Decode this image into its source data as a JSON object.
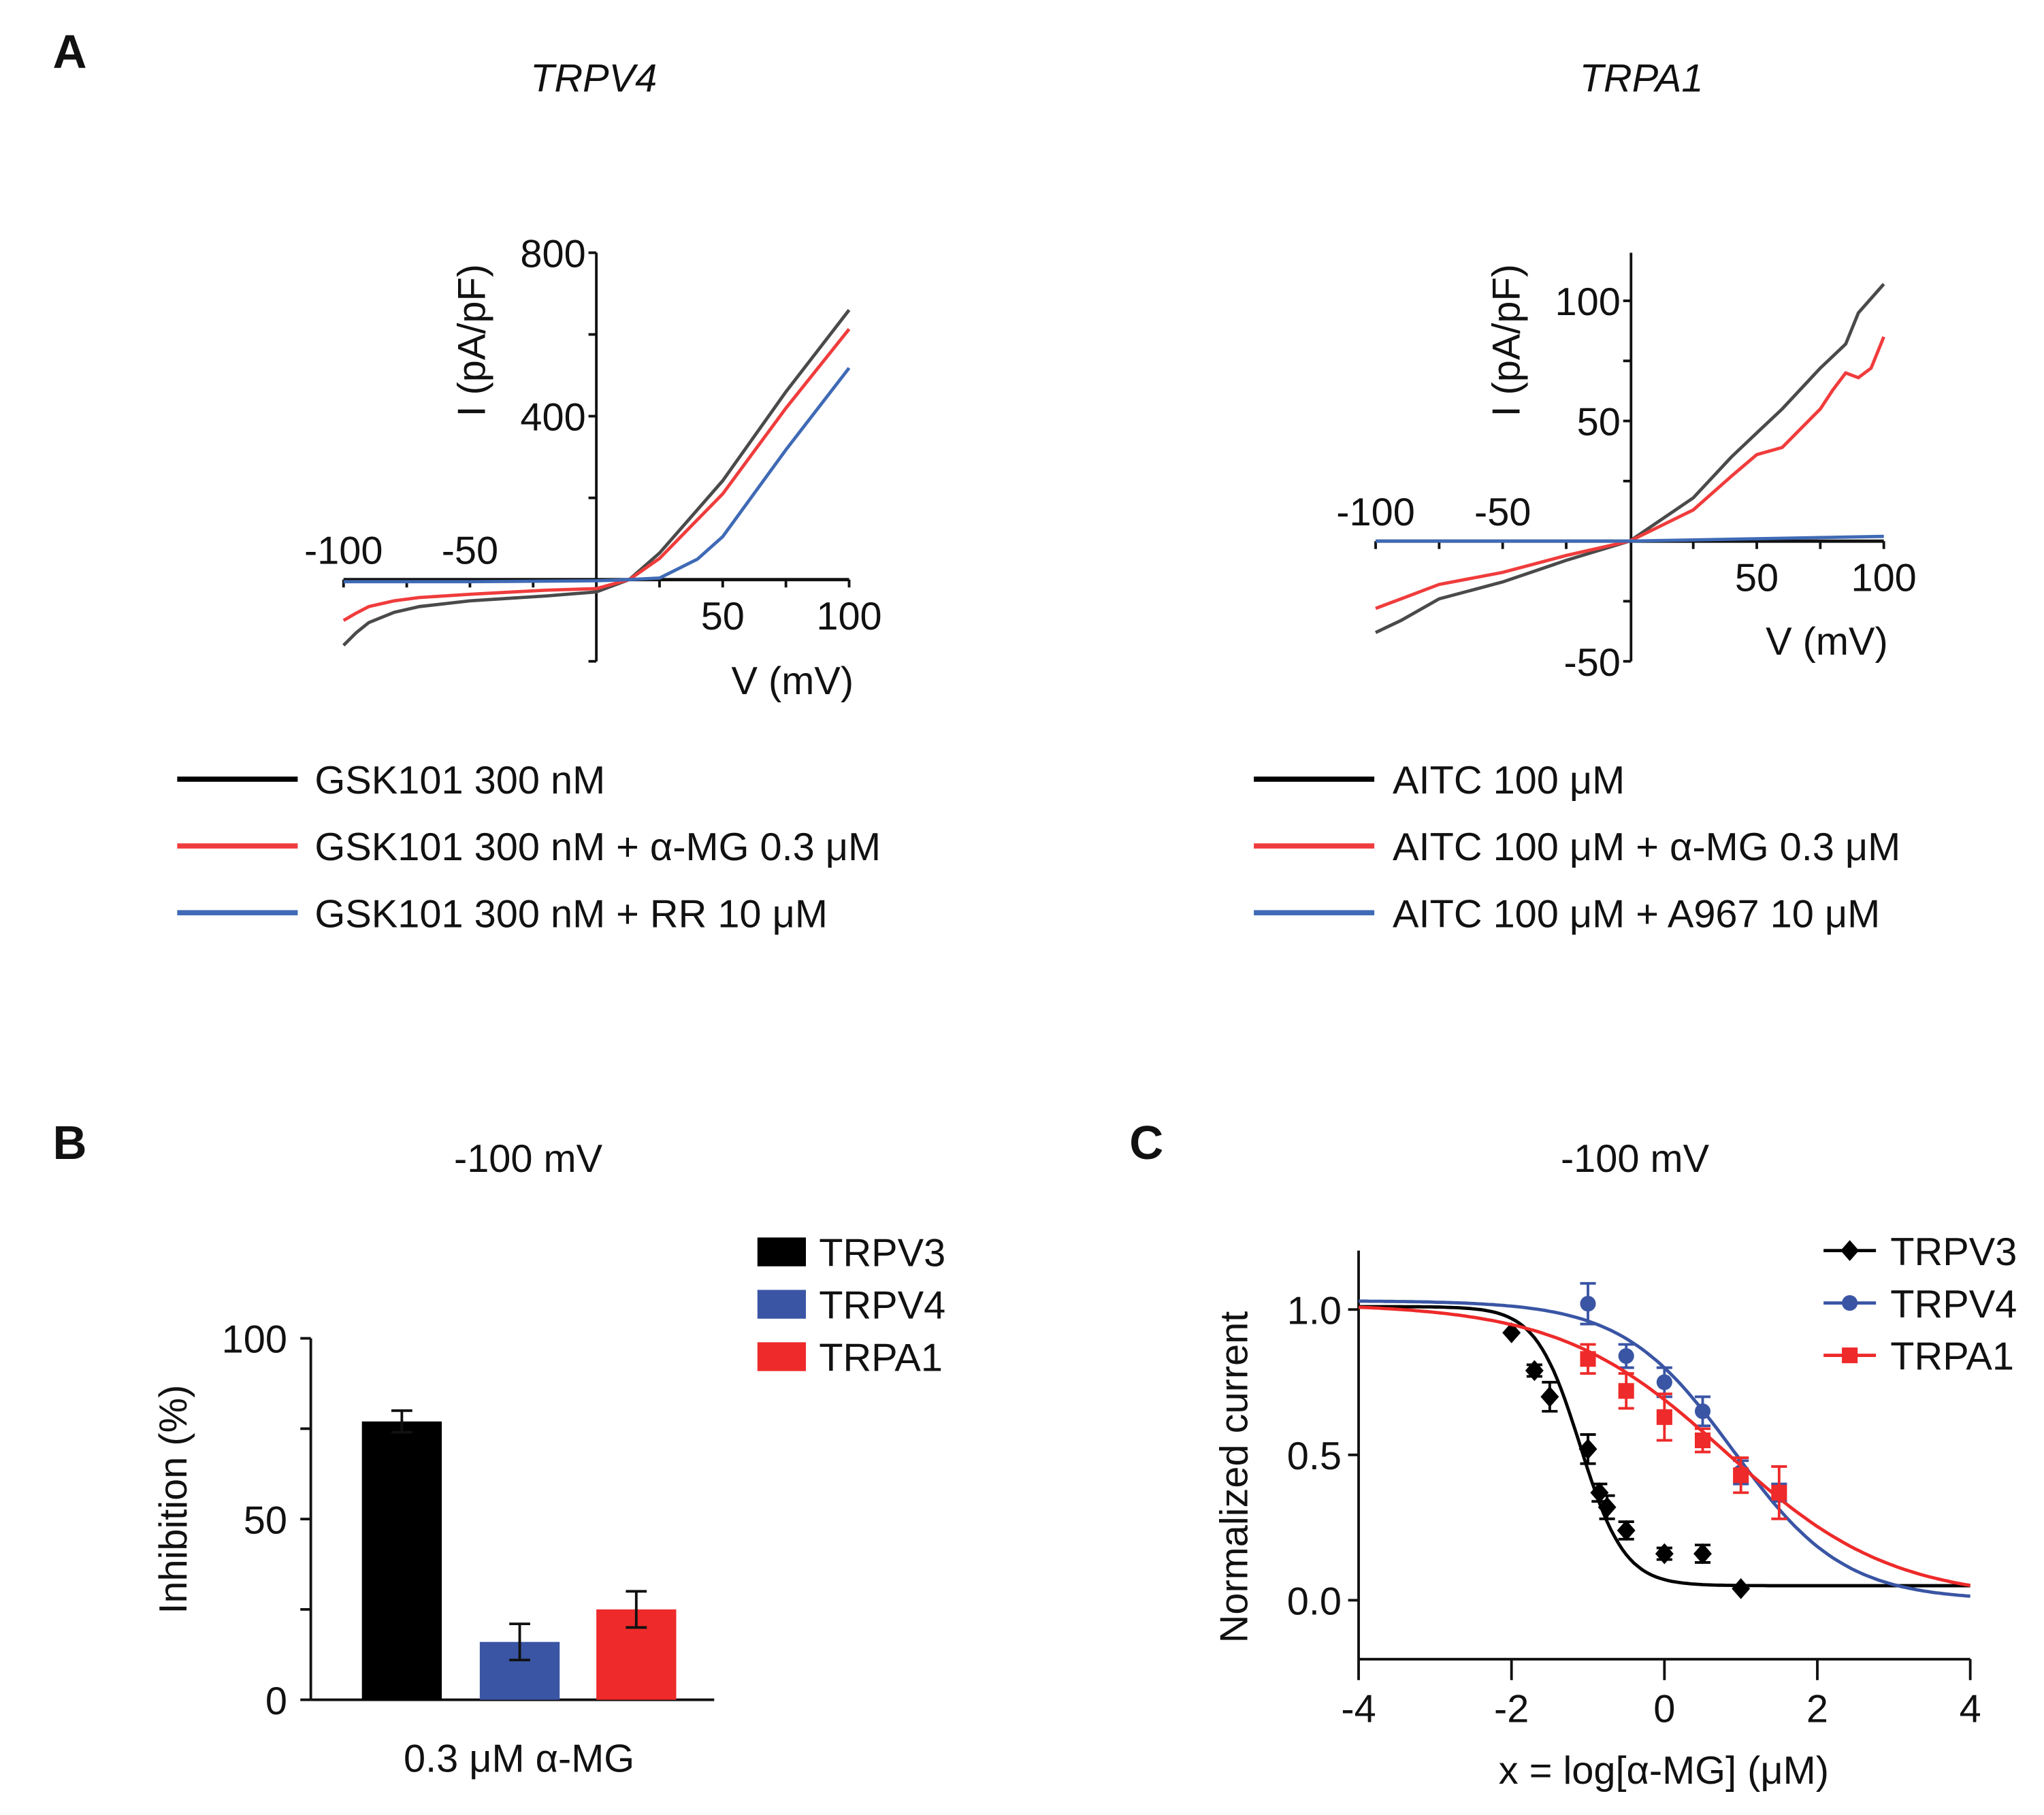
{
  "panels": {
    "a": "A",
    "b": "B",
    "c": "C"
  },
  "chart_data": [
    {
      "type": "line",
      "title": "TRPV4",
      "xlabel": "V (mV)",
      "ylabel": "I (pA/pF)",
      "xlim": [
        -100,
        100
      ],
      "ylim": [
        -200,
        800
      ],
      "xticks": [
        -100,
        -50,
        50,
        100
      ],
      "yticks": [
        800,
        400
      ],
      "series": [
        {
          "name": "GSK101 300 nM",
          "color": "#4a4a4a",
          "x": [
            -100,
            -95,
            -90,
            -80,
            -70,
            -50,
            -20,
            0,
            13,
            25,
            50,
            75,
            100
          ],
          "y": [
            -161,
            -130,
            -105,
            -80,
            -66,
            -52,
            -40,
            -30,
            0,
            65,
            242,
            460,
            660
          ]
        },
        {
          "name": "GSK101 300 nM + α-MG 0.3 μM",
          "color": "#f03c3c",
          "x": [
            -100,
            -95,
            -90,
            -80,
            -70,
            -50,
            -20,
            0,
            13,
            25,
            50,
            75,
            100
          ],
          "y": [
            -100,
            -82,
            -66,
            -52,
            -44,
            -36,
            -26,
            -22,
            0,
            52,
            210,
            420,
            613
          ]
        },
        {
          "name": "GSK101 300 nM + RR 10 μM",
          "color": "#3f6ab5",
          "x": [
            -100,
            -50,
            0,
            13,
            25,
            40,
            50,
            75,
            100
          ],
          "y": [
            -5,
            -5,
            -3,
            0,
            4,
            50,
            105,
            318,
            518
          ]
        }
      ]
    },
    {
      "type": "line",
      "title": "TRPA1",
      "xlabel": "V (mV)",
      "ylabel": "I (pA/pF)",
      "xlim": [
        -100,
        100
      ],
      "ylim": [
        -50,
        120
      ],
      "xticks": [
        -100,
        -50,
        50,
        100
      ],
      "yticks": [
        100,
        50,
        -50
      ],
      "series": [
        {
          "name": "AITC 100 μM",
          "color": "#4a4a4a",
          "x": [
            -100,
            -90,
            -75,
            -50,
            -25,
            0,
            25,
            40,
            50,
            60,
            75,
            80,
            85,
            90,
            100
          ],
          "y": [
            -38,
            -33,
            -24,
            -17,
            -8,
            0,
            18,
            35,
            45,
            55,
            72,
            77,
            82,
            95,
            107
          ]
        },
        {
          "name": "AITC 100 μM + α-MG 0.3 μM",
          "color": "#f03c3c",
          "x": [
            -100,
            -90,
            -75,
            -50,
            -25,
            0,
            25,
            40,
            50,
            60,
            75,
            80,
            85,
            90,
            95,
            100
          ],
          "y": [
            -28,
            -24,
            -18,
            -13,
            -6,
            0,
            13,
            27,
            36,
            39,
            55,
            63,
            70,
            68,
            72,
            85
          ]
        },
        {
          "name": "AITC 100 μM + A967 10 μM",
          "color": "#3f6ab5",
          "x": [
            -100,
            0,
            25,
            50,
            75,
            100
          ],
          "y": [
            0,
            0,
            0.5,
            1,
            1.5,
            2
          ]
        }
      ]
    },
    {
      "type": "bar",
      "title": "-100 mV",
      "xlabel": "0.3 μM α-MG",
      "ylabel": "Inhibition (%)",
      "ylim": [
        0,
        100
      ],
      "yticks": [
        0,
        50,
        100
      ],
      "legend": "top-right",
      "categories": [
        "TRPV3",
        "TRPV4",
        "TRPA1"
      ],
      "values": [
        77,
        16,
        25
      ],
      "errors": [
        3,
        5,
        5
      ],
      "colors": [
        "#000000",
        "#3a55a4",
        "#ee2a2a"
      ]
    },
    {
      "type": "scatter",
      "title": "-100 mV",
      "xlabel": "x = log[α-MG] (μM)",
      "ylabel": "Normalized current",
      "xlim": [
        -4,
        4
      ],
      "ylim": [
        -0.2,
        1.2
      ],
      "xticks": [
        -4,
        -2,
        0,
        2,
        4
      ],
      "yticks": [
        0.0,
        0.5,
        1.0
      ],
      "legend": "top-right",
      "series": [
        {
          "name": "TRPV3",
          "color": "#000000",
          "marker": "diamond",
          "x": [
            -2,
            -1.7,
            -1.5,
            -1,
            -0.85,
            -0.75,
            -0.5,
            0,
            0.5,
            1
          ],
          "y": [
            0.92,
            0.79,
            0.7,
            0.52,
            0.37,
            0.32,
            0.24,
            0.16,
            0.16,
            0.04
          ],
          "err": [
            0,
            0.02,
            0.05,
            0.05,
            0.03,
            0.04,
            0.03,
            0.02,
            0.03,
            0
          ],
          "fit": {
            "top": 1.01,
            "bottom": 0.05,
            "logIC50": -1.1,
            "hill": 1.5
          }
        },
        {
          "name": "TRPV4",
          "color": "#3a55a4",
          "marker": "circle",
          "x": [
            -1,
            -0.5,
            0,
            0.5,
            1,
            1.5
          ],
          "y": [
            1.02,
            0.84,
            0.75,
            0.65,
            0.44,
            0.37
          ],
          "err": [
            0.07,
            0.04,
            0.05,
            0.05,
            0.04,
            0.03
          ],
          "fit": {
            "top": 1.03,
            "bottom": 0.0,
            "logIC50": 0.9,
            "hill": 0.6
          }
        },
        {
          "name": "TRPA1",
          "color": "#ee2a2a",
          "marker": "square",
          "x": [
            -1,
            -0.5,
            0,
            0.5,
            1,
            1.5
          ],
          "y": [
            0.83,
            0.72,
            0.63,
            0.55,
            0.43,
            0.37
          ],
          "err": [
            0.05,
            0.06,
            0.08,
            0.04,
            0.06,
            0.09
          ],
          "fit": {
            "top": 1.02,
            "bottom": 0.0,
            "logIC50": 0.8,
            "hill": 0.4
          }
        }
      ]
    }
  ]
}
